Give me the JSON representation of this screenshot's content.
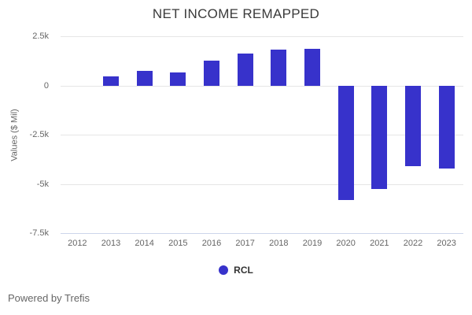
{
  "footer": {
    "credit": "Powered by Trefis"
  },
  "colors": {
    "bar": "#3732CB",
    "grid": "#e6e6e6",
    "axis_line": "#ccd6eb",
    "tick_text": "#666666",
    "title_text": "#3a3a3a"
  },
  "chart_data": {
    "type": "bar",
    "title": "NET INCOME REMAPPED",
    "xlabel": "",
    "ylabel": "Values ($ Mil)",
    "categories": [
      "2012",
      "2013",
      "2014",
      "2015",
      "2016",
      "2017",
      "2018",
      "2019",
      "2020",
      "2021",
      "2022",
      "2023"
    ],
    "series": [
      {
        "name": "RCL",
        "color": "#3732CB",
        "values": [
          0,
          470,
          760,
          670,
          1280,
          1625,
          1810,
          1880,
          -5800,
          -5260,
          -4100,
          -4200
        ]
      }
    ],
    "ylim": [
      -7500,
      2500
    ],
    "yticks": [
      {
        "value": 2500,
        "label": "2.5k"
      },
      {
        "value": 0,
        "label": "0"
      },
      {
        "value": -2500,
        "label": "-2.5k"
      },
      {
        "value": -5000,
        "label": "-5k"
      },
      {
        "value": -7500,
        "label": "-7.5k"
      }
    ],
    "grid": true,
    "legend_position": "bottom"
  }
}
